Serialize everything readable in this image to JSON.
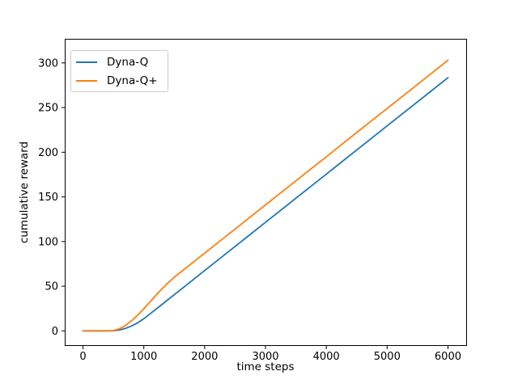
{
  "chart_data": {
    "type": "line",
    "title": "",
    "xlabel": "time steps",
    "ylabel": "cumulative reward",
    "x_ticks": [
      0,
      1000,
      2000,
      3000,
      4000,
      5000,
      6000
    ],
    "y_ticks": [
      0,
      50,
      100,
      150,
      200,
      250,
      300
    ],
    "xlim": [
      -300,
      6300
    ],
    "ylim": [
      -16,
      327
    ],
    "grid": false,
    "background": "#ffffff",
    "axis_color": "#000000",
    "legend": {
      "position": "upper left",
      "entries": [
        "Dyna-Q",
        "Dyna-Q+"
      ]
    },
    "x": [
      0,
      100,
      200,
      300,
      400,
      500,
      600,
      700,
      800,
      900,
      1000,
      1125,
      1250,
      1375,
      1500,
      1750,
      2000,
      2250,
      2500,
      2750,
      3000,
      3250,
      3500,
      3750,
      4000,
      4250,
      4500,
      4750,
      5000,
      5250,
      5500,
      5750,
      6000
    ],
    "series": [
      {
        "name": "Dyna-Q",
        "color": "#1f77b4",
        "values": [
          0,
          0,
          0,
          0,
          0,
          0.1,
          1.0,
          2.8,
          5.5,
          9.1,
          13.6,
          20.3,
          27.0,
          33.8,
          40.5,
          54.0,
          67.5,
          81.0,
          94.5,
          108.0,
          121.5,
          135.0,
          148.5,
          162.0,
          175.5,
          189.0,
          202.5,
          216.0,
          229.5,
          243.0,
          256.5,
          270.0,
          283.5
        ]
      },
      {
        "name": "Dyna-Q+",
        "color": "#ff7f0e",
        "values": [
          0,
          0,
          0,
          0,
          0,
          0.3,
          2.3,
          6.1,
          11.4,
          17.7,
          24.7,
          34.2,
          43.6,
          52.4,
          60.0,
          73.5,
          87.0,
          100.5,
          114.0,
          127.5,
          141.0,
          154.5,
          168.0,
          181.5,
          195.0,
          208.5,
          222.0,
          235.5,
          249.0,
          262.5,
          276.0,
          289.5,
          303.0
        ]
      }
    ]
  }
}
